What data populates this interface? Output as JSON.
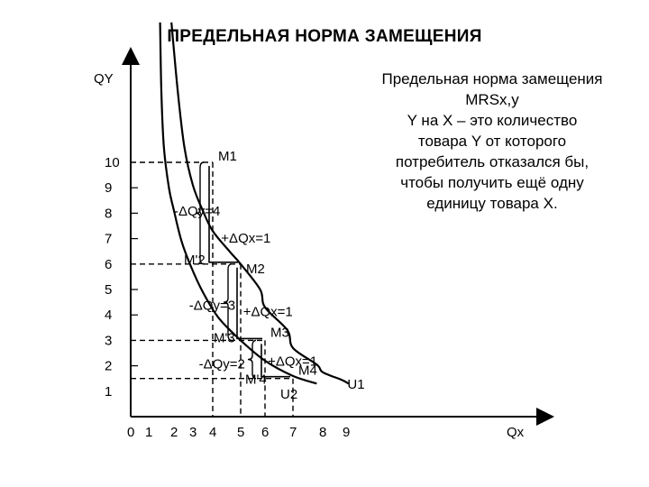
{
  "title": "ПРЕДЕЛЬНАЯ НОРМА ЗАМЕЩЕНИЯ",
  "definition_lines": [
    "Предельная норма замещения",
    "MRSx,y",
    "Y на X – это количество",
    "товара Y от которого",
    "потребитель отказался бы,",
    "чтобы получить ещё одну",
    "единицу товара X."
  ],
  "axes": {
    "y_label": "QY",
    "x_label": "Qx",
    "y_ticks": [
      "1",
      "2",
      "3",
      "4",
      "5",
      "6",
      "7",
      "8",
      "9",
      "10"
    ],
    "x_ticks": [
      "0",
      "1",
      "2",
      "3",
      "4",
      "5",
      "6",
      "7",
      "8",
      "9"
    ]
  },
  "curves": {
    "indifference_label": "U1",
    "indifference_points": [
      {
        "x": 1.9,
        "y": 15.5
      },
      {
        "x": 2.2,
        "y": 12.8
      },
      {
        "x": 2.55,
        "y": 10.6
      },
      {
        "x": 3.0,
        "y": 9.1
      },
      {
        "x": 3.5,
        "y": 8.1
      },
      {
        "x": 4.0,
        "y": 7.3
      },
      {
        "x": 4.6,
        "y": 6.5
      },
      {
        "x": 5.0,
        "y": 6.0
      },
      {
        "x": 5.8,
        "y": 5.0
      },
      {
        "x": 6.0,
        "y": 4.3
      },
      {
        "x": 6.8,
        "y": 3.4
      },
      {
        "x": 7.0,
        "y": 2.7
      },
      {
        "x": 7.8,
        "y": 2.05
      },
      {
        "x": 8.0,
        "y": 1.75
      },
      {
        "x": 8.8,
        "y": 1.45
      },
      {
        "x": 9.1,
        "y": 1.3
      }
    ],
    "second_points": [
      {
        "x": 1.45,
        "y": 15.5
      },
      {
        "x": 1.5,
        "y": 12.8
      },
      {
        "x": 1.6,
        "y": 10.6
      },
      {
        "x": 1.8,
        "y": 9.0
      },
      {
        "x": 2.0,
        "y": 8.1
      },
      {
        "x": 2.4,
        "y": 6.9
      },
      {
        "x": 2.9,
        "y": 5.9
      },
      {
        "x": 3.5,
        "y": 4.9
      },
      {
        "x": 4.2,
        "y": 3.9
      },
      {
        "x": 5.0,
        "y": 3.0
      },
      {
        "x": 6.0,
        "y": 2.2
      },
      {
        "x": 7.0,
        "y": 1.6
      },
      {
        "x": 7.8,
        "y": 1.3
      }
    ]
  },
  "points": [
    {
      "label": "M1",
      "x": 4,
      "y": 10,
      "dx": 6,
      "dy": -2
    },
    {
      "label": "M2",
      "x": 5,
      "y": 6,
      "dx": 6,
      "dy": 10
    },
    {
      "label": "M3",
      "x": 6,
      "y": 3,
      "dx": 6,
      "dy": -4
    },
    {
      "label": "M4",
      "x": 7,
      "y": 1.5,
      "dx": 6,
      "dy": -4
    },
    {
      "label": "M'2",
      "x": 4,
      "y": 6,
      "dx": -32,
      "dy": 0
    },
    {
      "label": "M'3",
      "x": 5,
      "y": 3,
      "dx": -30,
      "dy": 2
    },
    {
      "label": "M'4",
      "x": 6,
      "y": 1.5,
      "dx": -22,
      "dy": 6
    },
    {
      "label": "U2",
      "x": 7,
      "y": 1,
      "dx": -14,
      "dy": 8
    }
  ],
  "annotations": [
    {
      "text": "-ΔQy=4",
      "x": 2.0,
      "y": 7.9
    },
    {
      "text": "+ΔQx=1",
      "x": 4.3,
      "y": 6.85
    },
    {
      "text": "-ΔQy=3",
      "x": 2.8,
      "y": 4.2
    },
    {
      "text": "+ΔQx=1",
      "x": 5.1,
      "y": 3.95
    },
    {
      "text": "-ΔQy=2",
      "x": 3.3,
      "y": 1.9
    },
    {
      "text": "+ΔQx=1",
      "x": 6.1,
      "y": 2.0
    }
  ],
  "steps": [
    {
      "from_x": 4,
      "from_y": 10,
      "to_x": 5,
      "to_y": 6
    },
    {
      "from_x": 5,
      "from_y": 6,
      "to_x": 6,
      "to_y": 3
    },
    {
      "from_x": 6,
      "from_y": 3,
      "to_x": 7,
      "to_y": 1.5
    }
  ]
}
